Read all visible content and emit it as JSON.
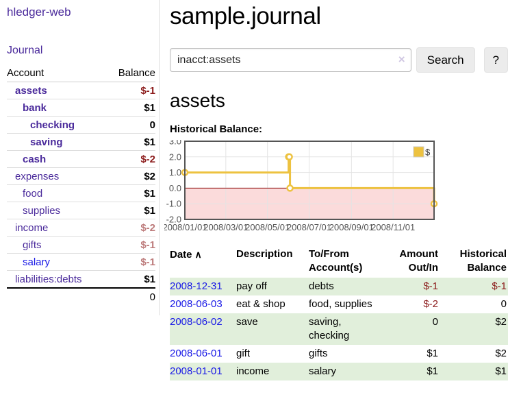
{
  "colors": {
    "link_purple": "#4a2a9b",
    "link_blue": "#1818e6",
    "negative_strong": "#8b1a1a",
    "negative_soft": "#bd7b7b",
    "row_stripe_green": "#e1efdb",
    "chart_line_yellow": "#edc240",
    "chart_negative_fill": "#fbdbdb",
    "chart_zero_line": "#8b0000"
  },
  "sidebar": {
    "app_title": "hledger-web",
    "journal_link": "Journal",
    "accounts_header": {
      "account": "Account",
      "balance": "Balance"
    },
    "accounts": [
      {
        "label": "assets",
        "indent": 1,
        "bold": true,
        "blue": false,
        "balance": "$-1",
        "balance_style": "neg-strong"
      },
      {
        "label": "bank",
        "indent": 2,
        "bold": true,
        "blue": false,
        "balance": "$1",
        "balance_style": ""
      },
      {
        "label": "checking",
        "indent": 3,
        "bold": true,
        "blue": false,
        "balance": "0",
        "balance_style": ""
      },
      {
        "label": "saving",
        "indent": 3,
        "bold": true,
        "blue": false,
        "balance": "$1",
        "balance_style": ""
      },
      {
        "label": "cash",
        "indent": 2,
        "bold": true,
        "blue": false,
        "balance": "$-2",
        "balance_style": "neg-strong"
      },
      {
        "label": "expenses",
        "indent": 1,
        "bold": false,
        "blue": false,
        "balance": "$2",
        "balance_style": ""
      },
      {
        "label": "food",
        "indent": 2,
        "bold": false,
        "blue": false,
        "balance": "$1",
        "balance_style": ""
      },
      {
        "label": "supplies",
        "indent": 2,
        "bold": false,
        "blue": false,
        "balance": "$1",
        "balance_style": ""
      },
      {
        "label": "income",
        "indent": 1,
        "bold": false,
        "blue": false,
        "balance": "$-2",
        "balance_style": "neg-soft"
      },
      {
        "label": "gifts",
        "indent": 2,
        "bold": false,
        "blue": false,
        "balance": "$-1",
        "balance_style": "neg-soft"
      },
      {
        "label": "salary",
        "indent": 2,
        "bold": false,
        "blue": true,
        "balance": "$-1",
        "balance_style": "neg-soft"
      },
      {
        "label": "liabilities:debts",
        "indent": 1,
        "bold": false,
        "blue": false,
        "balance": "$1",
        "balance_style": ""
      }
    ],
    "total": "0"
  },
  "main": {
    "title": "sample.journal",
    "search": {
      "value": "inacct:assets",
      "clear_icon": "×",
      "button_label": "Search",
      "help_label": "?"
    },
    "account_heading": "assets",
    "chart_label": "Historical Balance:",
    "register": {
      "columns": [
        "Date",
        "Description",
        "To/From Account(s)",
        "Amount Out/In",
        "Historical Balance"
      ],
      "sort_icon": "∧",
      "rows": [
        {
          "date": "2008-12-31",
          "description": "pay off",
          "accounts": "debts",
          "amount": "$-1",
          "amount_negative": true,
          "balance": "$-1",
          "balance_negative": true
        },
        {
          "date": "2008-06-03",
          "description": "eat & shop",
          "accounts": "food, supplies",
          "amount": "$-2",
          "amount_negative": true,
          "balance": "0",
          "balance_negative": false
        },
        {
          "date": "2008-06-02",
          "description": "save",
          "accounts": "saving, checking",
          "amount": "0",
          "amount_negative": false,
          "balance": "$2",
          "balance_negative": false
        },
        {
          "date": "2008-06-01",
          "description": "gift",
          "accounts": "gifts",
          "amount": "$1",
          "amount_negative": false,
          "balance": "$2",
          "balance_negative": false
        },
        {
          "date": "2008-01-01",
          "description": "income",
          "accounts": "salary",
          "amount": "$1",
          "amount_negative": false,
          "balance": "$1",
          "balance_negative": false
        }
      ]
    }
  },
  "chart_data": {
    "type": "line",
    "step": true,
    "title": "Historical Balance of assets",
    "legend": [
      {
        "label": "$",
        "color": "#edc240"
      }
    ],
    "legend_position": "top-right",
    "grid": true,
    "ylim": [
      -2.0,
      3.0
    ],
    "y_ticks": [
      3.0,
      2.0,
      1.0,
      0.0,
      -1.0,
      -2.0
    ],
    "y_tick_labels": [
      "3.0",
      "2.0",
      "1.0",
      "0.0",
      "-1.0",
      "-2.0"
    ],
    "x_range_days": 365,
    "x_ticks_days": [
      0,
      60,
      121,
      182,
      244,
      305
    ],
    "x_tick_labels": [
      "2008/01/01",
      "2008/03/01",
      "2008/05/01",
      "2008/07/01",
      "2008/09/01",
      "2008/11/01"
    ],
    "series": [
      {
        "name": "$",
        "color": "#edc240",
        "dates": [
          "2008-01-01",
          "2008-06-01",
          "2008-06-02",
          "2008-06-03",
          "2008-12-31"
        ],
        "days": [
          0,
          152,
          153,
          154,
          365
        ],
        "values": [
          1,
          2,
          2,
          0,
          -1
        ]
      }
    ],
    "negative_region_fill": "#fbdbdb",
    "zero_line_color": "#8b0000"
  }
}
